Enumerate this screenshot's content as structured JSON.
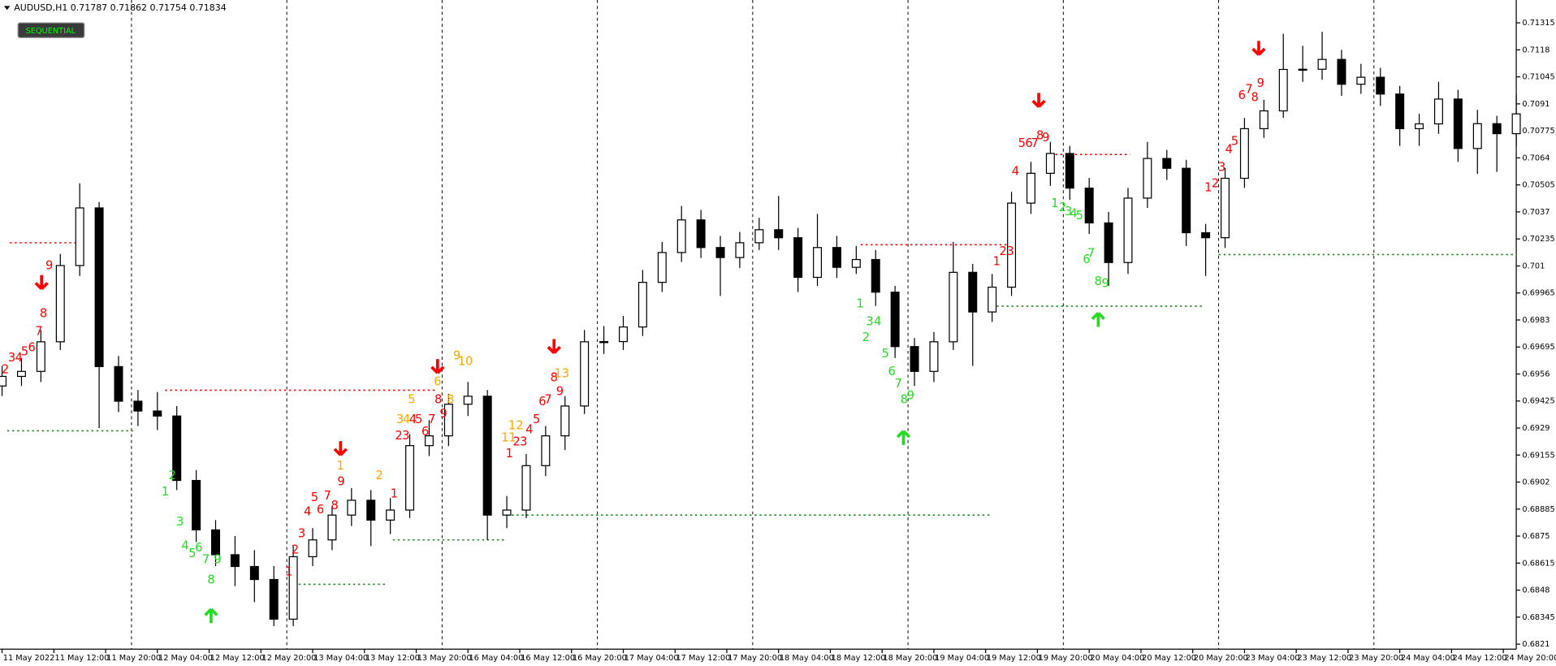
{
  "header": {
    "symbol_line": "AUDUSD,H1  0.71787 0.71862 0.71754 0.71834",
    "button": "SEQUENTIAL"
  },
  "chart_data": {
    "type": "candlestick",
    "x": [
      0,
      3,
      6,
      9,
      12,
      15,
      18,
      21,
      24,
      27,
      30,
      33,
      36,
      39,
      42,
      45,
      48,
      51,
      54,
      57,
      60,
      63,
      66,
      69,
      72,
      75,
      78,
      81,
      84,
      87,
      90,
      93,
      96,
      99,
      102,
      105,
      108,
      111,
      114,
      117,
      120,
      123,
      126,
      129,
      132,
      135,
      138,
      141,
      144,
      147,
      150,
      153,
      156,
      159,
      162,
      165,
      168,
      171,
      174,
      177,
      180,
      183,
      186,
      189,
      192,
      195,
      198,
      201,
      204,
      207,
      210,
      213,
      216,
      219,
      222,
      225,
      228,
      231,
      234
    ],
    "ohlc": [
      [
        0.695,
        0.696,
        0.6945,
        0.69548
      ],
      [
        0.69548,
        0.6964,
        0.695,
        0.69573
      ],
      [
        0.69573,
        0.6978,
        0.6952,
        0.69721
      ],
      [
        0.69721,
        0.7016,
        0.6968,
        0.70102
      ],
      [
        0.70102,
        0.70513,
        0.7005,
        0.7039
      ],
      [
        0.7039,
        0.7042,
        0.6929,
        0.69597
      ],
      [
        0.69597,
        0.6965,
        0.6937,
        0.69424
      ],
      [
        0.69424,
        0.6948,
        0.693,
        0.69375
      ],
      [
        0.69375,
        0.6947,
        0.6928,
        0.6935
      ],
      [
        0.6935,
        0.694,
        0.6898,
        0.69028
      ],
      [
        0.69028,
        0.6908,
        0.6872,
        0.68781
      ],
      [
        0.68781,
        0.6883,
        0.686,
        0.68657
      ],
      [
        0.68657,
        0.6875,
        0.685,
        0.68598
      ],
      [
        0.68598,
        0.6868,
        0.6842,
        0.68533
      ],
      [
        0.68533,
        0.686,
        0.683,
        0.68335
      ],
      [
        0.68335,
        0.687,
        0.683,
        0.68647
      ],
      [
        0.68647,
        0.6879,
        0.686,
        0.68731
      ],
      [
        0.68731,
        0.689,
        0.6868,
        0.68855
      ],
      [
        0.68855,
        0.6899,
        0.688,
        0.68929
      ],
      [
        0.68929,
        0.6898,
        0.687,
        0.6883
      ],
      [
        0.6883,
        0.6894,
        0.6876,
        0.6888
      ],
      [
        0.6888,
        0.6926,
        0.6884,
        0.69202
      ],
      [
        0.69202,
        0.6933,
        0.6915,
        0.69251
      ],
      [
        0.69251,
        0.6946,
        0.692,
        0.69409
      ],
      [
        0.69409,
        0.6952,
        0.6935,
        0.69449
      ],
      [
        0.69449,
        0.6948,
        0.6873,
        0.68855
      ],
      [
        0.68855,
        0.6895,
        0.6879,
        0.6888
      ],
      [
        0.6888,
        0.6916,
        0.6884,
        0.69102
      ],
      [
        0.69102,
        0.693,
        0.6905,
        0.69251
      ],
      [
        0.69251,
        0.6945,
        0.6918,
        0.694
      ],
      [
        0.694,
        0.6978,
        0.6936,
        0.69721
      ],
      [
        0.69721,
        0.698,
        0.6966,
        0.69722
      ],
      [
        0.69722,
        0.6985,
        0.6968,
        0.69795
      ],
      [
        0.69795,
        0.7008,
        0.6975,
        0.70018
      ],
      [
        0.70018,
        0.7022,
        0.6997,
        0.70167
      ],
      [
        0.70167,
        0.704,
        0.7012,
        0.7033
      ],
      [
        0.7033,
        0.7038,
        0.7014,
        0.70192
      ],
      [
        0.70192,
        0.7025,
        0.6995,
        0.70142
      ],
      [
        0.70142,
        0.7027,
        0.7009,
        0.70216
      ],
      [
        0.70216,
        0.7034,
        0.7018,
        0.70281
      ],
      [
        0.70281,
        0.7045,
        0.7018,
        0.70241
      ],
      [
        0.70241,
        0.7029,
        0.6997,
        0.70043
      ],
      [
        0.70043,
        0.7036,
        0.7,
        0.70192
      ],
      [
        0.70192,
        0.7025,
        0.7004,
        0.70093
      ],
      [
        0.70093,
        0.702,
        0.7006,
        0.70132
      ],
      [
        0.70132,
        0.7018,
        0.699,
        0.69969
      ],
      [
        0.69969,
        0.7,
        0.6964,
        0.69697
      ],
      [
        0.69697,
        0.6974,
        0.695,
        0.69573
      ],
      [
        0.69573,
        0.6977,
        0.6952,
        0.69721
      ],
      [
        0.69721,
        0.7022,
        0.6968,
        0.70068
      ],
      [
        0.70068,
        0.7011,
        0.696,
        0.6987
      ],
      [
        0.6987,
        0.7006,
        0.6982,
        0.69994
      ],
      [
        0.69994,
        0.7047,
        0.6995,
        0.70414
      ],
      [
        0.70414,
        0.7062,
        0.7036,
        0.70563
      ],
      [
        0.70563,
        0.7072,
        0.705,
        0.70662
      ],
      [
        0.70662,
        0.707,
        0.7043,
        0.70489
      ],
      [
        0.70489,
        0.7054,
        0.7026,
        0.70315
      ],
      [
        0.70315,
        0.7037,
        0.7,
        0.70117
      ],
      [
        0.70117,
        0.7049,
        0.7006,
        0.70439
      ],
      [
        0.70439,
        0.7072,
        0.7039,
        0.70637
      ],
      [
        0.70637,
        0.7068,
        0.7053,
        0.70588
      ],
      [
        0.70588,
        0.7063,
        0.702,
        0.70266
      ],
      [
        0.70266,
        0.7031,
        0.7005,
        0.70241
      ],
      [
        0.70241,
        0.7059,
        0.7019,
        0.70538
      ],
      [
        0.70538,
        0.7084,
        0.7049,
        0.70786
      ],
      [
        0.70786,
        0.7093,
        0.7074,
        0.70875
      ],
      [
        0.70875,
        0.7126,
        0.7084,
        0.71082
      ],
      [
        0.71082,
        0.712,
        0.7102,
        0.71083
      ],
      [
        0.71083,
        0.7127,
        0.7103,
        0.71132
      ],
      [
        0.71132,
        0.7118,
        0.7095,
        0.71008
      ],
      [
        0.71008,
        0.7111,
        0.7096,
        0.71043
      ],
      [
        0.71043,
        0.7109,
        0.709,
        0.70959
      ],
      [
        0.70959,
        0.71,
        0.707,
        0.70786
      ],
      [
        0.70786,
        0.7086,
        0.707,
        0.7081
      ],
      [
        0.7081,
        0.7102,
        0.7076,
        0.70934
      ],
      [
        0.70934,
        0.7098,
        0.7062,
        0.70687
      ],
      [
        0.70687,
        0.7088,
        0.7056,
        0.70811
      ],
      [
        0.70811,
        0.7085,
        0.7057,
        0.70761
      ],
      [
        0.70761,
        0.7096,
        0.707,
        0.7086
      ]
    ],
    "up_color": "#ffffff",
    "down_color": "#000000",
    "xlim": [
      0,
      234
    ],
    "ylim": [
      0.68185,
      0.71429
    ],
    "yticks": [
      0.71315,
      0.7118,
      0.71045,
      0.7091,
      0.70775,
      0.7064,
      0.70505,
      0.7037,
      0.70235,
      0.701,
      0.69965,
      0.6983,
      0.69695,
      0.6956,
      0.69425,
      0.6929,
      0.69155,
      0.6902,
      0.68885,
      0.6875,
      0.68615,
      0.6848,
      0.68345,
      0.6821
    ],
    "xticks": [
      {
        "value": 0,
        "label": "11 May 2022"
      },
      {
        "value": 8,
        "label": "11 May 12:00"
      },
      {
        "value": 16,
        "label": "11 May 20:00"
      },
      {
        "value": 24,
        "label": "12 May 04:00"
      },
      {
        "value": 32,
        "label": "12 May 12:00"
      },
      {
        "value": 40,
        "label": "12 May 20:00"
      },
      {
        "value": 48,
        "label": "13 May 04:00"
      },
      {
        "value": 56,
        "label": "13 May 12:00"
      },
      {
        "value": 64,
        "label": "13 May 20:00"
      },
      {
        "value": 72,
        "label": "16 May 04:00"
      },
      {
        "value": 80,
        "label": "16 May 12:00"
      },
      {
        "value": 88,
        "label": "16 May 20:00"
      },
      {
        "value": 96,
        "label": "17 May 04:00"
      },
      {
        "value": 104,
        "label": "17 May 12:00"
      },
      {
        "value": 112,
        "label": "17 May 20:00"
      },
      {
        "value": 120,
        "label": "18 May 04:00"
      },
      {
        "value": 128,
        "label": "18 May 12:00"
      },
      {
        "value": 136,
        "label": "18 May 20:00"
      },
      {
        "value": 144,
        "label": "19 May 04:00"
      },
      {
        "value": 152,
        "label": "19 May 12:00"
      },
      {
        "value": 160,
        "label": "19 May 20:00"
      },
      {
        "value": 168,
        "label": "20 May 04:00"
      },
      {
        "value": 176,
        "label": "20 May 12:00"
      },
      {
        "value": 184,
        "label": "20 May 20:00"
      },
      {
        "value": 192,
        "label": "23 May 04:00"
      },
      {
        "value": 200,
        "label": "23 May 12:00"
      },
      {
        "value": 208,
        "label": "23 May 20:00"
      },
      {
        "value": 216,
        "label": "24 May 04:00"
      },
      {
        "value": 224,
        "label": "24 May 12:00"
      },
      {
        "value": 232,
        "label": "24 May 20:00"
      }
    ],
    "day_separators": [
      20,
      44,
      68,
      92,
      116,
      140,
      164,
      188,
      212
    ],
    "annotations": [
      {
        "color": "#ff0000",
        "labels": [
          [
            "2",
            0.5,
            0.6958
          ],
          [
            "3",
            1.5,
            0.6964
          ],
          [
            "4",
            2.6,
            0.6964
          ],
          [
            "5",
            3.5,
            0.6967
          ],
          [
            "6",
            4.6,
            0.6969
          ],
          [
            "7",
            5.7,
            0.6977
          ],
          [
            "8",
            6.4,
            0.6986
          ],
          [
            "9",
            7.3,
            0.701
          ],
          [
            "1",
            44.3,
            0.6857
          ],
          [
            "2",
            45.3,
            0.6868
          ],
          [
            "3",
            46.3,
            0.6876
          ],
          [
            "4",
            47.2,
            0.6887
          ],
          [
            "5",
            48.3,
            0.6894
          ],
          [
            "6",
            49.2,
            0.6888
          ],
          [
            "7",
            50.3,
            0.6895
          ],
          [
            "8",
            51.4,
            0.689
          ],
          [
            "9",
            52.4,
            0.6902
          ],
          [
            "1",
            60.6,
            0.6896
          ],
          [
            "2",
            61.3,
            0.6925
          ],
          [
            "3",
            62.4,
            0.6925
          ],
          [
            "4",
            63.5,
            0.6933
          ],
          [
            "5",
            64.4,
            0.6933
          ],
          [
            "6",
            65.4,
            0.6927
          ],
          [
            "7",
            66.4,
            0.6933
          ],
          [
            "8",
            67.4,
            0.6943
          ],
          [
            "9",
            68.2,
            0.6936
          ],
          [
            "1",
            78.4,
            0.6916
          ],
          [
            "2",
            79.5,
            0.6922
          ],
          [
            "3",
            80.6,
            0.6922
          ],
          [
            "4",
            81.5,
            0.6928
          ],
          [
            "5",
            82.6,
            0.6933
          ],
          [
            "6",
            83.5,
            0.6942
          ],
          [
            "7",
            84.4,
            0.6943
          ],
          [
            "8",
            85.3,
            0.6954
          ],
          [
            "9",
            86.2,
            0.6947
          ],
          [
            "1",
            153.7,
            0.7012
          ],
          [
            "2",
            154.7,
            0.7017
          ],
          [
            "3",
            155.8,
            0.7017
          ],
          [
            "4",
            156.6,
            0.7057
          ],
          [
            "5",
            157.6,
            0.7071
          ],
          [
            "6",
            158.7,
            0.7071
          ],
          [
            "7",
            159.6,
            0.7071
          ],
          [
            "8",
            160.4,
            0.7075
          ],
          [
            "9",
            161.3,
            0.7074
          ],
          [
            "1",
            186.4,
            0.7049
          ],
          [
            "2",
            187.5,
            0.7051
          ],
          [
            "3",
            188.5,
            0.7059
          ],
          [
            "4",
            189.6,
            0.7068
          ],
          [
            "5",
            190.5,
            0.7072
          ],
          [
            "6",
            191.6,
            0.7095
          ],
          [
            "7",
            192.7,
            0.7098
          ],
          [
            "8",
            193.6,
            0.7094
          ],
          [
            "9",
            194.5,
            0.7101
          ]
        ]
      },
      {
        "color": "#22dd22",
        "labels": [
          [
            "1",
            25.2,
            0.6897
          ],
          [
            "2",
            26.3,
            0.6905
          ],
          [
            "3",
            27.5,
            0.6882
          ],
          [
            "4",
            28.3,
            0.687
          ],
          [
            "5",
            29.4,
            0.6866
          ],
          [
            "6",
            30.4,
            0.6869
          ],
          [
            "7",
            31.5,
            0.6863
          ],
          [
            "8",
            32.3,
            0.6853
          ],
          [
            "9",
            33.3,
            0.6863
          ],
          [
            "1",
            132.6,
            0.6991
          ],
          [
            "2",
            133.5,
            0.6974
          ],
          [
            "3",
            134.1,
            0.6982
          ],
          [
            "4",
            135.3,
            0.6982
          ],
          [
            "5",
            136.5,
            0.6966
          ],
          [
            "6",
            137.5,
            0.6957
          ],
          [
            "7",
            138.5,
            0.6951
          ],
          [
            "8",
            139.4,
            0.6943
          ],
          [
            "9",
            140.4,
            0.6945
          ],
          [
            "1",
            162.7,
            0.7041
          ],
          [
            "2",
            163.9,
            0.7039
          ],
          [
            "3",
            164.8,
            0.7037
          ],
          [
            "4",
            165.6,
            0.7036
          ],
          [
            "5",
            166.5,
            0.7035
          ],
          [
            "6",
            167.6,
            0.7013
          ],
          [
            "7",
            168.3,
            0.7016
          ],
          [
            "8",
            169.4,
            0.7002
          ],
          [
            "9",
            170.5,
            0.7001
          ]
        ]
      },
      {
        "color": "#ffa500",
        "labels": [
          [
            "1",
            52.3,
            0.691
          ],
          [
            "2",
            58.3,
            0.6905
          ],
          [
            "3",
            61.5,
            0.6933
          ],
          [
            "4",
            62.5,
            0.6933
          ],
          [
            "5",
            63.3,
            0.6943
          ],
          [
            "6",
            67.3,
            0.6952
          ],
          [
            "8",
            69.3,
            0.6943
          ],
          [
            "9",
            70.3,
            0.6965
          ],
          [
            "10",
            71.6,
            0.6962
          ],
          [
            "11",
            78.3,
            0.6924
          ],
          [
            "12",
            79.4,
            0.693
          ],
          [
            "13",
            86.5,
            0.6956
          ]
        ]
      }
    ],
    "sell_arrows": {
      "color": "#ff0000",
      "points": [
        [
          6.1,
          0.7002
        ],
        [
          52.3,
          0.6919
        ],
        [
          67.3,
          0.696
        ],
        [
          85.3,
          0.697
        ],
        [
          160.2,
          0.7093
        ],
        [
          194.2,
          0.7119
        ]
      ]
    },
    "buy_arrows": {
      "color": "#22dd22",
      "points": [
        [
          32.3,
          0.6835
        ],
        [
          139.3,
          0.6924
        ],
        [
          169.4,
          0.6983
        ]
      ]
    },
    "levels": [
      {
        "color": "#ff0000",
        "lines": [
          [
            0.70216,
            1.2,
            11.5
          ],
          [
            0.69479,
            25.2,
            67.3
          ],
          [
            0.70206,
            132.7,
            156
          ],
          [
            0.70657,
            162,
            174.3
          ]
        ]
      },
      {
        "color": "#228822",
        "lines": [
          [
            0.69276,
            0.8,
            20.3
          ],
          [
            0.68509,
            44.3,
            59.6
          ],
          [
            0.68731,
            60.4,
            78
          ],
          [
            0.68855,
            78,
            152.9
          ],
          [
            0.69899,
            153.7,
            185.8
          ],
          [
            0.70157,
            188,
            234
          ]
        ]
      }
    ]
  }
}
